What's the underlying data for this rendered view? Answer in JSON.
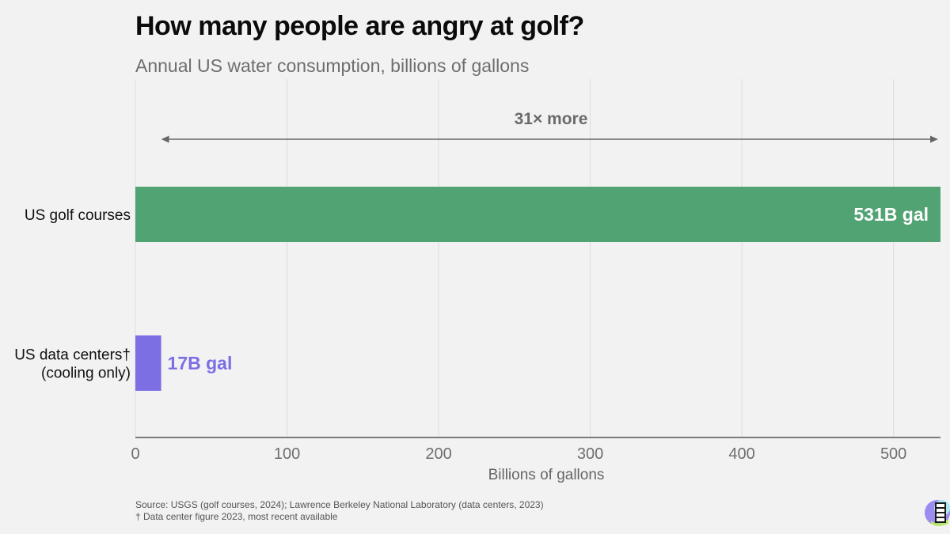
{
  "header": {
    "title": "How many people are angry at golf?",
    "subtitle": "Annual US water consumption, billions of gallons"
  },
  "chart_data": {
    "type": "bar",
    "orientation": "horizontal",
    "categories": [
      "US golf courses",
      "US data centers†\n(cooling only)"
    ],
    "values": [
      531,
      17
    ],
    "value_labels": [
      "531B gal",
      "17B gal"
    ],
    "colors": [
      "#52a373",
      "#7b6fe3"
    ],
    "label_colors": [
      "#ffffff",
      "#7b6fe3"
    ],
    "xlabel": "Billions of gallons",
    "xlim": [
      0,
      531
    ],
    "xticks": [
      0,
      100,
      200,
      300,
      400,
      500
    ],
    "grid": "vertical",
    "annotation": {
      "text": "31× more",
      "from": 17,
      "to": 531
    }
  },
  "footer": {
    "source": "Source: USGS (golf courses, 2024); Lawrence Berkeley National Laboratory (data centers, 2023)",
    "note": "† Data center figure 2023, most recent available"
  },
  "logo": {
    "icon": "publication-logo-icon"
  }
}
